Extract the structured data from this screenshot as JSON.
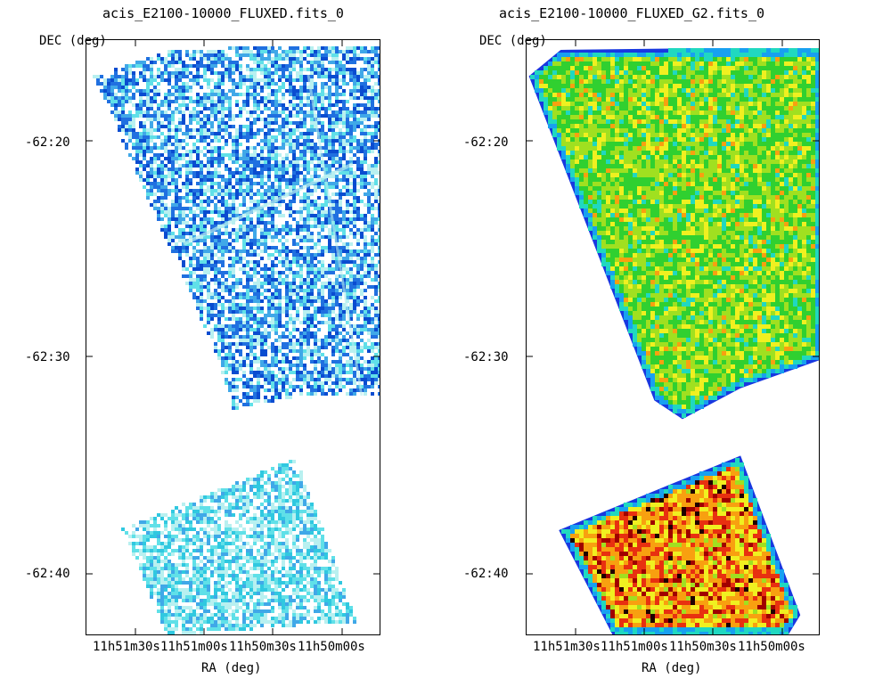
{
  "chart_data": [
    {
      "type": "heatmap",
      "title": "acis_E2100-10000_FLUXED.fits_0",
      "xlabel": "RA (deg)",
      "ylabel": "DEC (deg)",
      "x_ticks": [
        "11h51m30s",
        "11h51m00s",
        "11h50m30s",
        "11h50m00s"
      ],
      "y_ticks": [
        "-62:20",
        "-62:30",
        "-62:40"
      ],
      "grid": false,
      "colormap": [
        "#ffffff",
        "#b8f0f0",
        "#60e0e8",
        "#30c8e0",
        "#40a8e8",
        "#2070e0",
        "#0a4cd0"
      ]
    },
    {
      "type": "heatmap",
      "title": "acis_E2100-10000_FLUXED_G2.fits_0",
      "xlabel": "RA (deg)",
      "ylabel": "DEC (deg)",
      "x_ticks": [
        "11h51m30s",
        "11h51m00s",
        "11h50m30s",
        "11h50m00s"
      ],
      "y_ticks": [
        "-62:20",
        "-62:30",
        "-62:40"
      ],
      "grid": false,
      "colormap": [
        "#1838e0",
        "#18a0f0",
        "#20d8c0",
        "#30d030",
        "#a0e020",
        "#f0f020",
        "#f8a010",
        "#e83010",
        "#a00000",
        "#200000"
      ]
    }
  ]
}
